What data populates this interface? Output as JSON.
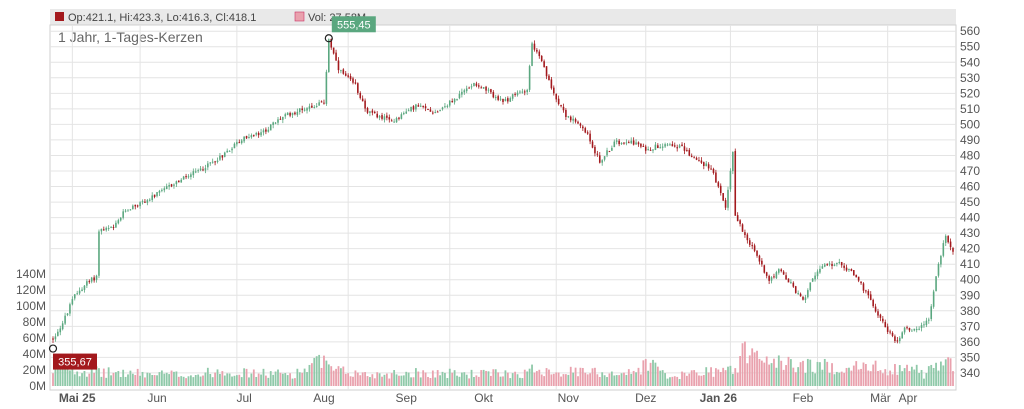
{
  "header": {
    "ohlc_label": "Op:421.1, Hi:423.3, Lo:416.3, Cl:418.1",
    "vol_label": "Vol: 27.58M"
  },
  "subtitle": "1 Jahr, 1-Tages-Kerzen",
  "colors": {
    "up": "#5aa77f",
    "down": "#a3191d",
    "vol_up": "#8fc9a9",
    "vol_down": "#e9a1ad",
    "grid": "#e4e4e4"
  },
  "chart_data": {
    "type": "candlestick",
    "title": "1 Jahr, 1-Tages-Kerzen",
    "price_axis": {
      "ticks": [
        340,
        350,
        360,
        370,
        380,
        390,
        400,
        410,
        420,
        430,
        440,
        450,
        460,
        470,
        480,
        490,
        500,
        510,
        520,
        530,
        540,
        550,
        560
      ],
      "range": [
        329,
        564
      ]
    },
    "volume_axis": {
      "labels": [
        "0M",
        "20M",
        "40M",
        "60M",
        "80M",
        "100M",
        "120M",
        "140M"
      ],
      "range": [
        0,
        140
      ]
    },
    "months": [
      "Mai 25",
      "Jun",
      "Jul",
      "Aug",
      "Sep",
      "Okt",
      "Nov",
      "Dez",
      "Jan 26",
      "Feb",
      "Mär",
      "Apr"
    ],
    "bold_months": [
      "Mai 25",
      "Jan 26"
    ],
    "annotations": [
      {
        "label": "555,45",
        "value": 555.45,
        "type": "high"
      },
      {
        "label": "355,67",
        "value": 355.67,
        "type": "low"
      }
    ],
    "price_path": [
      [
        0,
        362
      ],
      [
        4,
        372
      ],
      [
        9,
        390
      ],
      [
        14,
        398
      ],
      [
        18,
        402
      ],
      [
        19,
        432
      ],
      [
        25,
        433
      ],
      [
        30,
        445
      ],
      [
        40,
        452
      ],
      [
        50,
        462
      ],
      [
        60,
        470
      ],
      [
        70,
        480
      ],
      [
        75,
        487
      ],
      [
        80,
        492
      ],
      [
        86,
        494
      ],
      [
        95,
        505
      ],
      [
        105,
        511
      ],
      [
        112,
        514
      ],
      [
        114,
        555
      ],
      [
        118,
        535
      ],
      [
        125,
        525
      ],
      [
        130,
        508
      ],
      [
        140,
        502
      ],
      [
        150,
        512
      ],
      [
        158,
        508
      ],
      [
        166,
        516
      ],
      [
        174,
        527
      ],
      [
        180,
        521
      ],
      [
        186,
        514
      ],
      [
        192,
        520
      ],
      [
        196,
        523
      ],
      [
        198,
        552
      ],
      [
        202,
        540
      ],
      [
        206,
        523
      ],
      [
        212,
        506
      ],
      [
        220,
        496
      ],
      [
        226,
        476
      ],
      [
        232,
        488
      ],
      [
        238,
        490
      ],
      [
        245,
        484
      ],
      [
        254,
        488
      ],
      [
        260,
        485
      ],
      [
        266,
        477
      ],
      [
        272,
        472
      ],
      [
        278,
        446
      ],
      [
        281,
        483
      ],
      [
        282,
        441
      ],
      [
        290,
        418
      ],
      [
        296,
        400
      ],
      [
        300,
        406
      ],
      [
        305,
        397
      ],
      [
        310,
        386
      ],
      [
        314,
        402
      ],
      [
        320,
        410
      ],
      [
        326,
        410
      ],
      [
        332,
        402
      ],
      [
        338,
        386
      ],
      [
        344,
        370
      ],
      [
        348,
        360
      ],
      [
        352,
        368
      ],
      [
        358,
        369
      ],
      [
        362,
        375
      ],
      [
        366,
        410
      ],
      [
        369,
        429
      ],
      [
        372,
        418
      ]
    ],
    "volume_path": [
      [
        0,
        14
      ],
      [
        4,
        30
      ],
      [
        10,
        20
      ],
      [
        20,
        17
      ],
      [
        40,
        15
      ],
      [
        60,
        14
      ],
      [
        70,
        20
      ],
      [
        80,
        16
      ],
      [
        100,
        15
      ],
      [
        113,
        34
      ],
      [
        114,
        20
      ],
      [
        130,
        14
      ],
      [
        150,
        17
      ],
      [
        160,
        16
      ],
      [
        170,
        15
      ],
      [
        196,
        16
      ],
      [
        199,
        22
      ],
      [
        210,
        18
      ],
      [
        240,
        16
      ],
      [
        246,
        30
      ],
      [
        256,
        9
      ],
      [
        265,
        18
      ],
      [
        280,
        20
      ],
      [
        283,
        20
      ],
      [
        285,
        56
      ],
      [
        287,
        33
      ],
      [
        290,
        40
      ],
      [
        300,
        28
      ],
      [
        320,
        24
      ],
      [
        340,
        23
      ],
      [
        348,
        21
      ],
      [
        352,
        27
      ],
      [
        360,
        15
      ],
      [
        366,
        26
      ],
      [
        372,
        28
      ]
    ]
  }
}
